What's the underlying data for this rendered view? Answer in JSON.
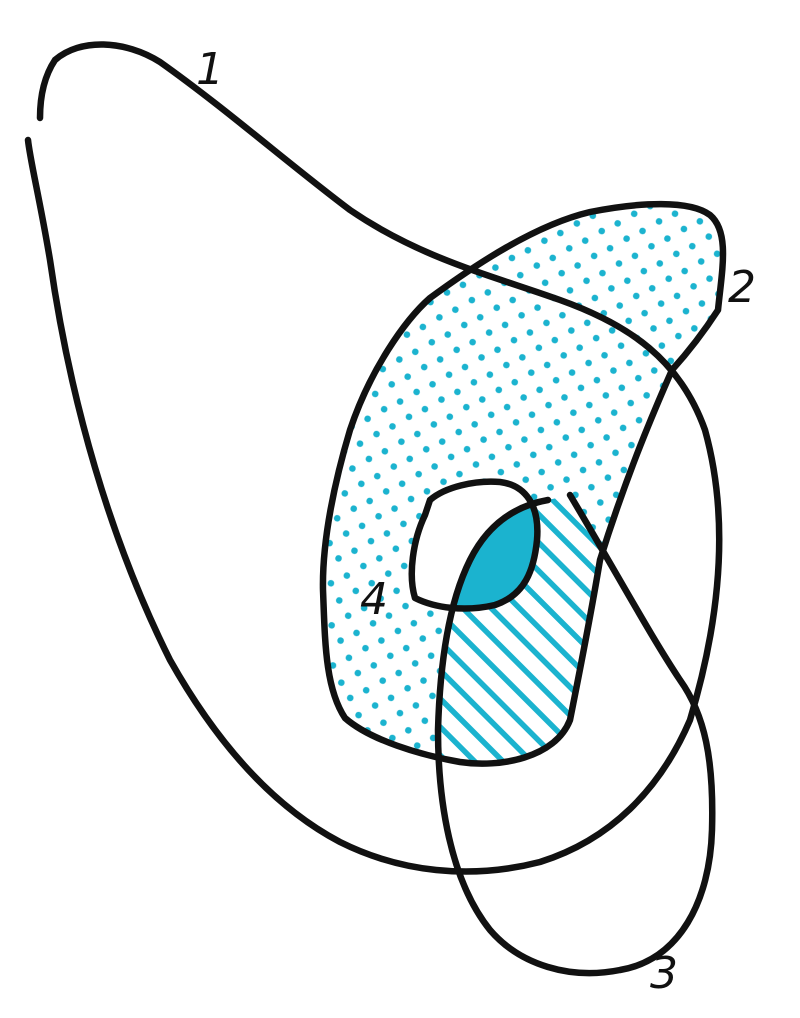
{
  "diagram": {
    "colors": {
      "ink": "#111111",
      "accent": "#1bb3cf",
      "background": "#ffffff"
    },
    "regions": [
      {
        "label": "1"
      },
      {
        "label": "2"
      },
      {
        "label": "3"
      },
      {
        "label": "4"
      }
    ],
    "fills": {
      "region_2_minus_3": "dotted",
      "region_2_and_3": "hatched",
      "region_2_3_4": "solid"
    }
  }
}
